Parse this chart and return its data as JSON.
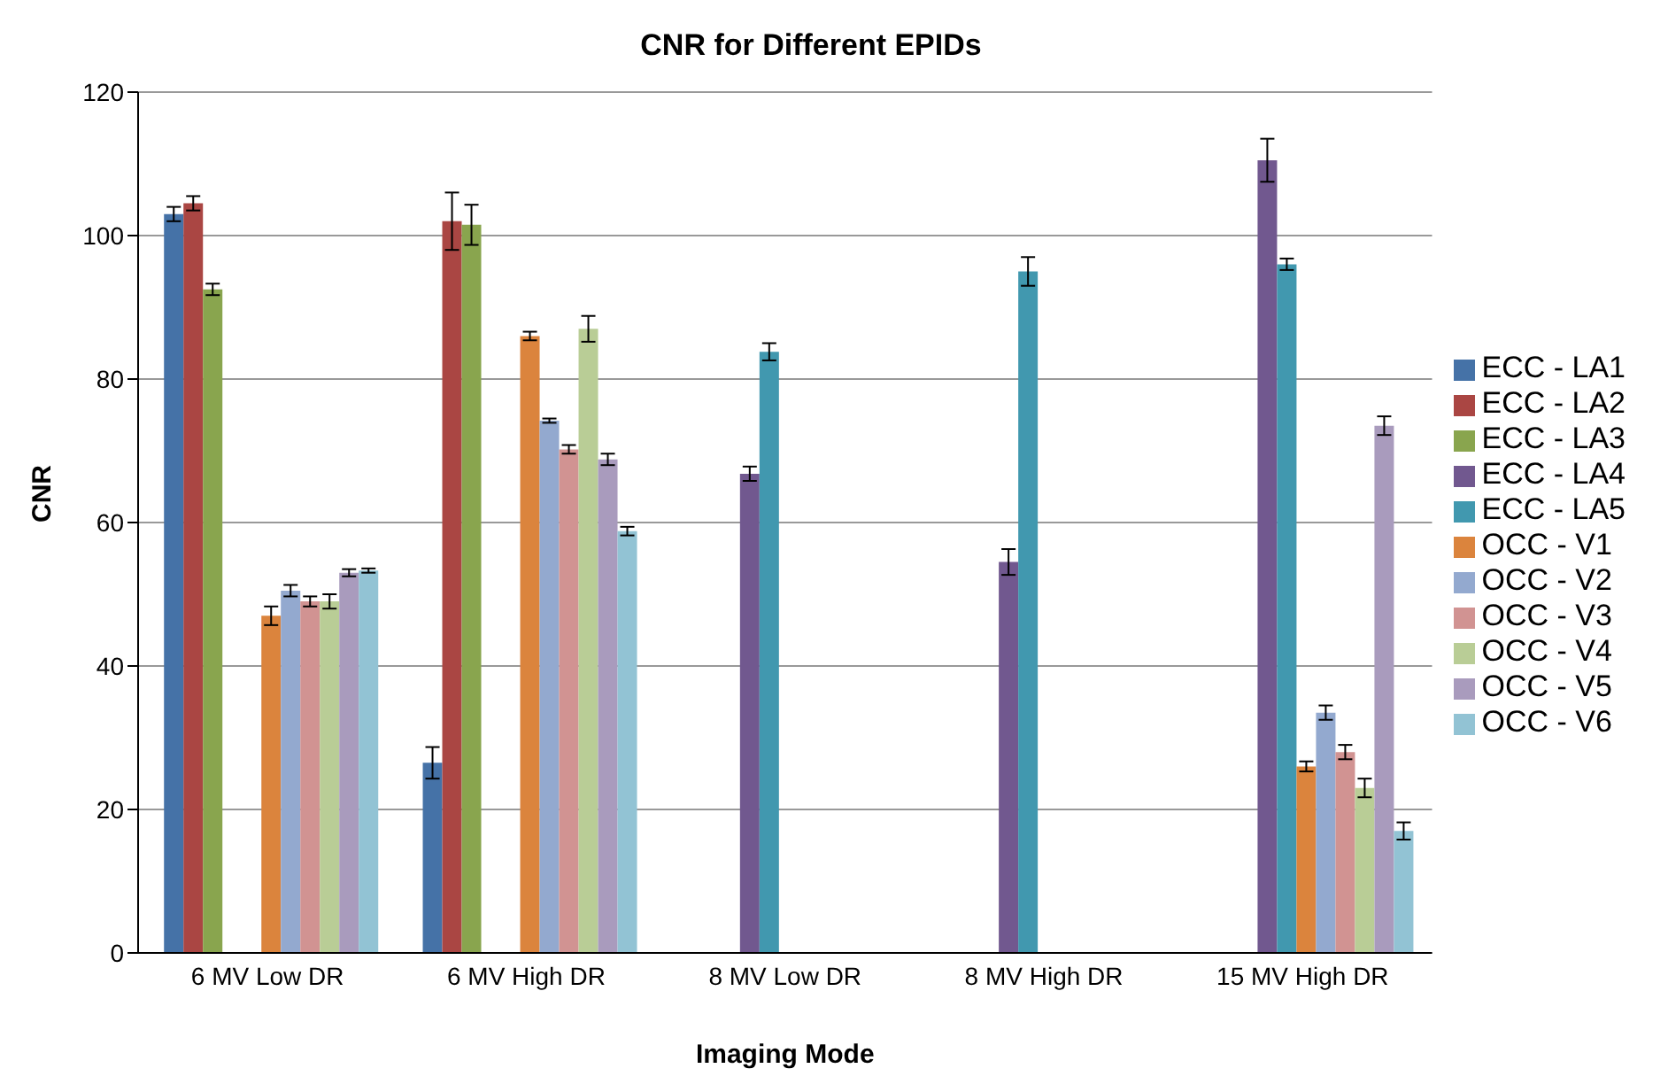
{
  "chart_data": {
    "type": "bar",
    "title": "CNR for Different EPIDs",
    "xlabel": "Imaging Mode",
    "ylabel": "CNR",
    "categories": [
      "6 MV Low DR",
      "6 MV High DR",
      "8 MV Low DR",
      "8 MV High DR",
      "15 MV High DR"
    ],
    "series": [
      {
        "name": "ECC - LA1",
        "color": "#4572a7",
        "values": [
          103,
          26.5,
          null,
          null,
          null
        ],
        "errors": [
          1,
          2.2,
          null,
          null,
          null
        ]
      },
      {
        "name": "ECC - LA2",
        "color": "#aa4643",
        "values": [
          104.5,
          102,
          null,
          null,
          null
        ],
        "errors": [
          1,
          4,
          null,
          null,
          null
        ]
      },
      {
        "name": "ECC - LA3",
        "color": "#89a54e",
        "values": [
          92.5,
          101.5,
          null,
          null,
          null
        ],
        "errors": [
          0.8,
          2.8,
          null,
          null,
          null
        ]
      },
      {
        "name": "ECC - LA4",
        "color": "#71588f",
        "values": [
          null,
          null,
          66.8,
          54.5,
          110.5
        ],
        "errors": [
          null,
          null,
          1,
          1.8,
          3
        ]
      },
      {
        "name": "ECC - LA5",
        "color": "#4198af",
        "values": [
          null,
          null,
          83.8,
          95,
          96
        ],
        "errors": [
          null,
          null,
          1.2,
          2,
          0.8
        ]
      },
      {
        "name": "OCC - V1",
        "color": "#db843d",
        "values": [
          47,
          86,
          null,
          null,
          26
        ],
        "errors": [
          1.3,
          0.6,
          null,
          null,
          0.7
        ]
      },
      {
        "name": "OCC - V2",
        "color": "#93a9cf",
        "values": [
          50.5,
          74.2,
          null,
          null,
          33.5
        ],
        "errors": [
          0.8,
          0.3,
          null,
          null,
          1
        ]
      },
      {
        "name": "OCC - V3",
        "color": "#d19392",
        "values": [
          49,
          70.2,
          null,
          null,
          28
        ],
        "errors": [
          0.7,
          0.6,
          null,
          null,
          1
        ]
      },
      {
        "name": "OCC - V4",
        "color": "#b9cd96",
        "values": [
          49,
          87,
          null,
          null,
          23
        ],
        "errors": [
          1,
          1.8,
          null,
          null,
          1.3
        ]
      },
      {
        "name": "OCC - V5",
        "color": "#a99bbd",
        "values": [
          53,
          68.8,
          null,
          null,
          73.5
        ],
        "errors": [
          0.5,
          0.8,
          null,
          null,
          1.3
        ]
      },
      {
        "name": "OCC - V6",
        "color": "#92c3d4",
        "values": [
          53.3,
          58.8,
          null,
          null,
          17
        ],
        "errors": [
          0.3,
          0.6,
          null,
          null,
          1.2
        ]
      }
    ],
    "ylim": [
      0,
      120
    ],
    "yticks": [
      0,
      20,
      40,
      60,
      80,
      100,
      120
    ],
    "grid": "y",
    "legend": "right"
  }
}
